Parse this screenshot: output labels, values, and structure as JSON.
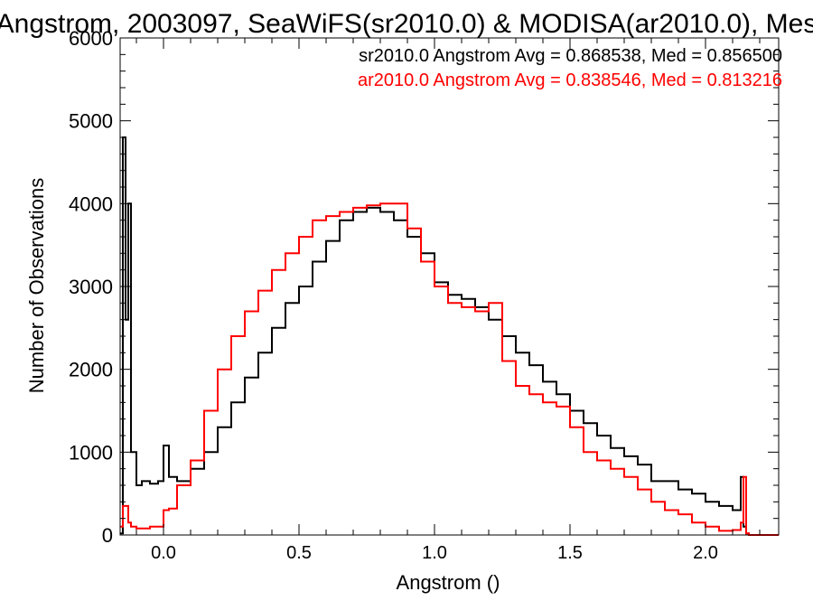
{
  "chart_data": {
    "type": "line",
    "title": "Angstrom, 2003097, SeaWiFS(sr2010.0) & MODISA(ar2010.0), Mes",
    "xlabel": "Angstrom ()",
    "ylabel": "Number of Observations",
    "xlim": [
      -0.16,
      2.27
    ],
    "ylim": [
      0,
      6000
    ],
    "x_ticks": [
      0.0,
      0.5,
      1.0,
      1.5,
      2.0
    ],
    "x_tick_labels": [
      "0.0",
      "0.5",
      "1.0",
      "1.5",
      "2.0"
    ],
    "y_ticks": [
      0,
      1000,
      2000,
      3000,
      4000,
      5000,
      6000
    ],
    "y_tick_labels": [
      "0",
      "1000",
      "2000",
      "3000",
      "4000",
      "5000",
      "6000"
    ],
    "grid": false,
    "legend_position": "top-right",
    "series": [
      {
        "name": "sr2010.0",
        "color": "#000000",
        "annotation": "sr2010.0 Angstrom Avg = 0.868538, Med = 0.856500",
        "x": [
          -0.16,
          -0.15,
          -0.14,
          -0.13,
          -0.12,
          -0.11,
          -0.1,
          -0.08,
          -0.05,
          -0.02,
          0.0,
          0.02,
          0.05,
          0.1,
          0.15,
          0.2,
          0.25,
          0.3,
          0.35,
          0.4,
          0.45,
          0.5,
          0.55,
          0.6,
          0.65,
          0.7,
          0.75,
          0.8,
          0.85,
          0.9,
          0.95,
          1.0,
          1.05,
          1.1,
          1.15,
          1.2,
          1.25,
          1.3,
          1.35,
          1.4,
          1.45,
          1.5,
          1.55,
          1.6,
          1.65,
          1.7,
          1.75,
          1.8,
          1.85,
          1.9,
          1.95,
          2.0,
          2.05,
          2.1,
          2.13,
          2.14,
          2.15,
          2.16,
          2.27
        ],
        "y": [
          20,
          4800,
          2600,
          4000,
          1000,
          1000,
          600,
          650,
          620,
          650,
          1080,
          700,
          650,
          800,
          1000,
          1300,
          1600,
          1900,
          2200,
          2500,
          2800,
          3000,
          3300,
          3550,
          3800,
          3900,
          3950,
          3900,
          3800,
          3600,
          3400,
          3050,
          2900,
          2850,
          2750,
          2600,
          2400,
          2200,
          2050,
          1850,
          1700,
          1500,
          1350,
          1200,
          1050,
          950,
          850,
          650,
          650,
          550,
          500,
          400,
          350,
          300,
          700,
          100,
          20,
          0,
          0
        ]
      },
      {
        "name": "ar2010.0",
        "color": "#ff0000",
        "annotation": "ar2010.0 Angstrom Avg = 0.838546, Med = 0.813216",
        "x": [
          -0.16,
          -0.15,
          -0.13,
          -0.12,
          -0.1,
          -0.05,
          0.0,
          0.02,
          0.05,
          0.1,
          0.15,
          0.2,
          0.25,
          0.3,
          0.35,
          0.4,
          0.45,
          0.5,
          0.55,
          0.6,
          0.65,
          0.7,
          0.75,
          0.8,
          0.85,
          0.9,
          0.95,
          1.0,
          1.05,
          1.1,
          1.15,
          1.2,
          1.25,
          1.3,
          1.35,
          1.4,
          1.45,
          1.5,
          1.55,
          1.6,
          1.65,
          1.7,
          1.75,
          1.8,
          1.85,
          1.9,
          1.95,
          2.0,
          2.05,
          2.1,
          2.13,
          2.14,
          2.15,
          2.16,
          2.27
        ],
        "y": [
          100,
          350,
          150,
          100,
          80,
          100,
          300,
          320,
          600,
          900,
          1500,
          2000,
          2400,
          2700,
          2950,
          3200,
          3400,
          3600,
          3800,
          3850,
          3900,
          3950,
          3980,
          4000,
          4000,
          3700,
          3300,
          3000,
          2800,
          2750,
          2700,
          2800,
          2100,
          1800,
          1700,
          1600,
          1550,
          1300,
          1000,
          900,
          800,
          700,
          550,
          400,
          300,
          250,
          150,
          100,
          50,
          60,
          150,
          700,
          20,
          0,
          0
        ]
      }
    ]
  }
}
